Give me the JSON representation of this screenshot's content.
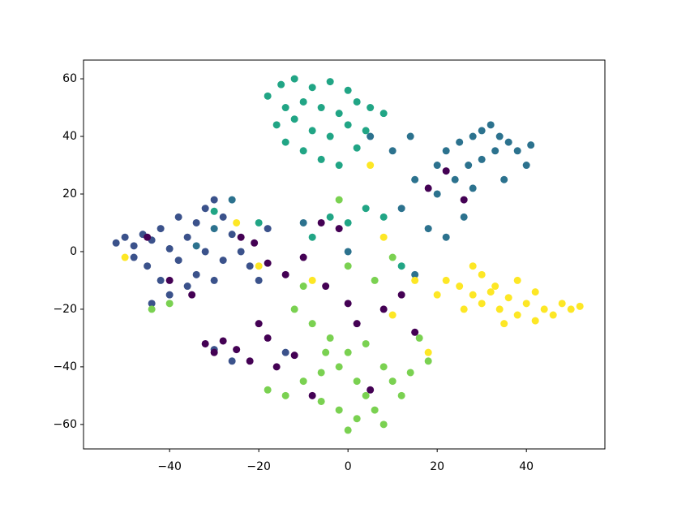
{
  "chart_data": {
    "type": "scatter",
    "xlim": [
      -59.3,
      57.6
    ],
    "ylim": [
      -68.5,
      66.5
    ],
    "xticks": [
      {
        "value": -40,
        "label": "−40"
      },
      {
        "value": -20,
        "label": "−20"
      },
      0,
      20,
      40
    ],
    "yticks": [
      {
        "value": -60,
        "label": "−60"
      },
      {
        "value": -40,
        "label": "−40"
      },
      {
        "value": -20,
        "label": "−20"
      },
      0,
      20,
      40,
      60
    ],
    "series": [
      {
        "color": "#3b528b",
        "x": [
          -52,
          -50,
          -48,
          -46,
          -44,
          -42,
          -40,
          -38,
          -45,
          -42,
          -36,
          -34,
          -32,
          -30,
          -28,
          -26,
          -24,
          -22,
          -34,
          -30,
          -40,
          -44,
          -36,
          -28,
          -20,
          -18,
          -48,
          -38,
          -30,
          -26,
          -14,
          -32
        ],
        "values": [
          3,
          5,
          2,
          6,
          4,
          8,
          1,
          -3,
          -5,
          -10,
          5,
          10,
          15,
          18,
          12,
          6,
          0,
          -5,
          -8,
          -10,
          -15,
          -18,
          -12,
          -3,
          -10,
          8,
          -2,
          12,
          -34,
          -38,
          -35,
          0
        ]
      },
      {
        "color": "#440154",
        "x": [
          -32,
          -30,
          -28,
          -25,
          -22,
          -18,
          -20,
          -16,
          -12,
          -8,
          -24,
          -21,
          -18,
          -14,
          -10,
          -5,
          0,
          2,
          8,
          12,
          15,
          18,
          22,
          26,
          -6,
          -40,
          -45,
          5,
          -2,
          -35
        ],
        "values": [
          -32,
          -35,
          -31,
          -34,
          -38,
          -30,
          -25,
          -40,
          -36,
          -50,
          5,
          3,
          -4,
          -8,
          -2,
          -12,
          -18,
          -25,
          -20,
          -15,
          -28,
          22,
          28,
          18,
          10,
          -10,
          5,
          -48,
          8,
          -15
        ]
      },
      {
        "color": "#2c728e",
        "x": [
          20,
          22,
          25,
          28,
          30,
          32,
          34,
          36,
          38,
          40,
          33,
          30,
          27,
          24,
          20,
          15,
          12,
          18,
          22,
          26,
          35,
          28,
          14,
          10,
          5,
          -26,
          -30,
          -34,
          0,
          15,
          -10,
          41
        ],
        "values": [
          30,
          35,
          38,
          40,
          42,
          44,
          40,
          38,
          35,
          30,
          35,
          32,
          30,
          25,
          20,
          25,
          15,
          8,
          5,
          12,
          25,
          22,
          40,
          35,
          40,
          18,
          8,
          2,
          0,
          -8,
          10,
          37
        ]
      },
      {
        "color": "#21a585",
        "x": [
          -18,
          -15,
          -12,
          -8,
          -4,
          0,
          -14,
          -10,
          -6,
          -2,
          2,
          5,
          8,
          -16,
          -12,
          -8,
          -4,
          0,
          4,
          -10,
          -6,
          -2,
          2,
          -14,
          -4,
          0,
          4,
          8,
          -8,
          -20,
          -30,
          12
        ],
        "values": [
          54,
          58,
          60,
          57,
          59,
          56,
          50,
          52,
          50,
          48,
          52,
          50,
          48,
          44,
          46,
          42,
          40,
          44,
          42,
          35,
          32,
          30,
          36,
          38,
          12,
          10,
          15,
          12,
          5,
          10,
          14,
          -5
        ]
      },
      {
        "color": "#7ad151",
        "x": [
          -18,
          -14,
          -10,
          -6,
          -2,
          0,
          2,
          4,
          6,
          2,
          -2,
          0,
          -6,
          8,
          10,
          12,
          14,
          18,
          16,
          -4,
          4,
          -8,
          -12,
          6,
          -10,
          0,
          10,
          -2,
          -40,
          -44,
          8,
          -5
        ],
        "values": [
          -48,
          -50,
          -45,
          -42,
          -40,
          -35,
          -45,
          -50,
          -55,
          -58,
          -55,
          -62,
          -52,
          -40,
          -45,
          -50,
          -42,
          -38,
          -30,
          -30,
          -32,
          -25,
          -20,
          -10,
          -12,
          -5,
          -2,
          18,
          -18,
          -20,
          -60,
          -35
        ]
      },
      {
        "color": "#fde725",
        "x": [
          22,
          25,
          28,
          30,
          32,
          34,
          36,
          38,
          40,
          42,
          44,
          46,
          48,
          50,
          52,
          35,
          30,
          26,
          20,
          33,
          38,
          42,
          15,
          10,
          18,
          -8,
          -20,
          5,
          -25,
          -50,
          28,
          8
        ],
        "values": [
          -10,
          -12,
          -15,
          -18,
          -14,
          -20,
          -16,
          -22,
          -18,
          -24,
          -20,
          -22,
          -18,
          -20,
          -19,
          -25,
          -8,
          -20,
          -15,
          -12,
          -10,
          -14,
          -10,
          -22,
          -35,
          -10,
          -5,
          30,
          10,
          -2,
          -5,
          5
        ]
      }
    ]
  }
}
